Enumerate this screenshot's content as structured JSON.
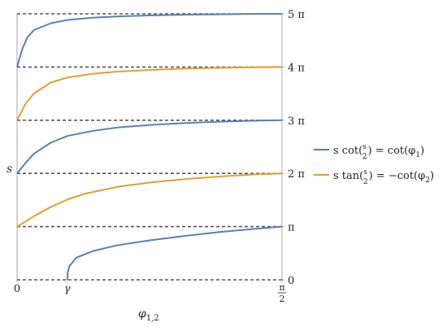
{
  "chart_data": {
    "type": "line",
    "title": "",
    "xlabel": "φ",
    "xlabel_sub": "1,2",
    "ylabel": "s",
    "xlim": [
      0,
      1.5708
    ],
    "ylim": [
      0,
      15.708
    ],
    "grid": false,
    "legend_placement": "right",
    "x_ticks": [
      {
        "value": 0,
        "label": "0"
      },
      {
        "value": 0.2975,
        "label": "γ"
      },
      {
        "value": 1.5708,
        "label_num": "π",
        "label_den": "2"
      }
    ],
    "y_ticks": [
      {
        "value": 0,
        "label": "0"
      },
      {
        "value": 3.1416,
        "label": "π"
      },
      {
        "value": 6.2832,
        "label": "2 π"
      },
      {
        "value": 9.4248,
        "label": "3 π"
      },
      {
        "value": 12.5664,
        "label": "4 π"
      },
      {
        "value": 15.708,
        "label": "5 π"
      }
    ],
    "reference_lines": [
      0,
      3.1416,
      6.2832,
      9.4248,
      12.5664,
      15.708
    ],
    "colors": {
      "series_1": "#5a7fb5",
      "series_2": "#e0a12c",
      "reference": "#555555",
      "axis": "#aaaaaa"
    },
    "legend": [
      {
        "pre": "s cot(",
        "frac_num": "s",
        "frac_den": "2",
        "post": ") = cot(φ",
        "sub": "1",
        "end": ")"
      },
      {
        "pre": "s tan(",
        "frac_num": "s",
        "frac_den": "2",
        "post": ") = −cot(φ",
        "sub": "2",
        "end": ")"
      }
    ],
    "series": [
      {
        "kind": "cot",
        "color": "#5a7fb5",
        "branch": 0,
        "x": [
          0.2975,
          0.3,
          0.31,
          0.35,
          0.45,
          0.6,
          0.8,
          1.0,
          1.2,
          1.4,
          1.5708
        ],
        "y": [
          0,
          0.4,
          0.8,
          1.3,
          1.7,
          2.05,
          2.35,
          2.6,
          2.82,
          3.0,
          3.1416
        ]
      },
      {
        "kind": "tan",
        "color": "#e0a12c",
        "branch": 1,
        "x": [
          0,
          0.1,
          0.2,
          0.3,
          0.4,
          0.6,
          0.8,
          1.0,
          1.2,
          1.4,
          1.5708
        ],
        "y": [
          3.1416,
          3.75,
          4.3,
          4.75,
          5.08,
          5.5,
          5.76,
          5.95,
          6.1,
          6.22,
          6.2832
        ]
      },
      {
        "kind": "cot",
        "color": "#5a7fb5",
        "branch": 2,
        "x": [
          0,
          0.05,
          0.1,
          0.2,
          0.3,
          0.45,
          0.6,
          0.8,
          1.0,
          1.2,
          1.4,
          1.5708
        ],
        "y": [
          6.2832,
          6.9,
          7.45,
          8.1,
          8.5,
          8.8,
          9.0,
          9.15,
          9.26,
          9.34,
          9.4,
          9.4248
        ]
      },
      {
        "kind": "tan",
        "color": "#e0a12c",
        "branch": 3,
        "x": [
          0,
          0.05,
          0.1,
          0.2,
          0.3,
          0.45,
          0.6,
          0.8,
          1.0,
          1.2,
          1.4,
          1.5708
        ],
        "y": [
          9.4248,
          10.4,
          11.0,
          11.65,
          11.95,
          12.17,
          12.3,
          12.4,
          12.47,
          12.52,
          12.55,
          12.5664
        ]
      },
      {
        "kind": "cot",
        "color": "#5a7fb5",
        "branch": 4,
        "x": [
          0,
          0.03,
          0.06,
          0.1,
          0.2,
          0.3,
          0.45,
          0.6,
          0.8,
          1.0,
          1.2,
          1.4,
          1.5708
        ],
        "y": [
          12.5664,
          13.6,
          14.3,
          14.75,
          15.15,
          15.35,
          15.48,
          15.56,
          15.62,
          15.66,
          15.68,
          15.7,
          15.708
        ]
      }
    ]
  }
}
